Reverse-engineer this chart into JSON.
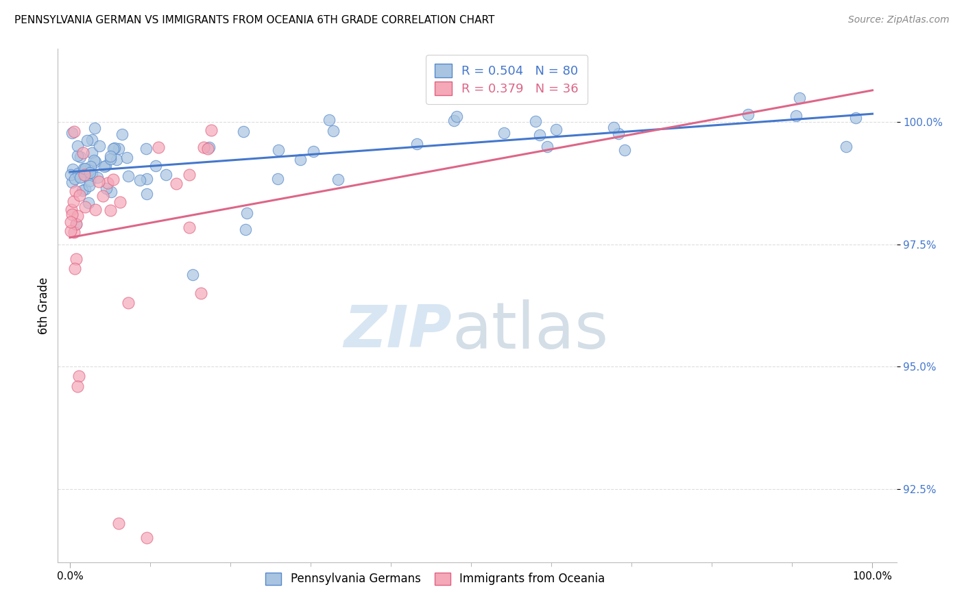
{
  "title": "PENNSYLVANIA GERMAN VS IMMIGRANTS FROM OCEANIA 6TH GRADE CORRELATION CHART",
  "source": "Source: ZipAtlas.com",
  "ylabel": "6th Grade",
  "legend_blue_label": "Pennsylvania Germans",
  "legend_pink_label": "Immigrants from Oceania",
  "r_blue": 0.504,
  "n_blue": 80,
  "r_pink": 0.379,
  "n_pink": 36,
  "blue_color": "#A8C4E0",
  "pink_color": "#F4A8B8",
  "blue_edge_color": "#5588CC",
  "pink_edge_color": "#E06080",
  "blue_line_color": "#4477CC",
  "pink_line_color": "#DD6688",
  "background_color": "#FFFFFF",
  "watermark_zip": "ZIP",
  "watermark_atlas": "atlas",
  "yticks": [
    92.5,
    95.0,
    97.5,
    100.0
  ],
  "ytick_labels": [
    "92.5%",
    "95.0%",
    "97.5%",
    "100.0%"
  ],
  "grid_color": "#DDDDDD",
  "title_fontsize": 11,
  "source_fontsize": 10,
  "tick_fontsize": 11,
  "legend_fontsize": 13
}
